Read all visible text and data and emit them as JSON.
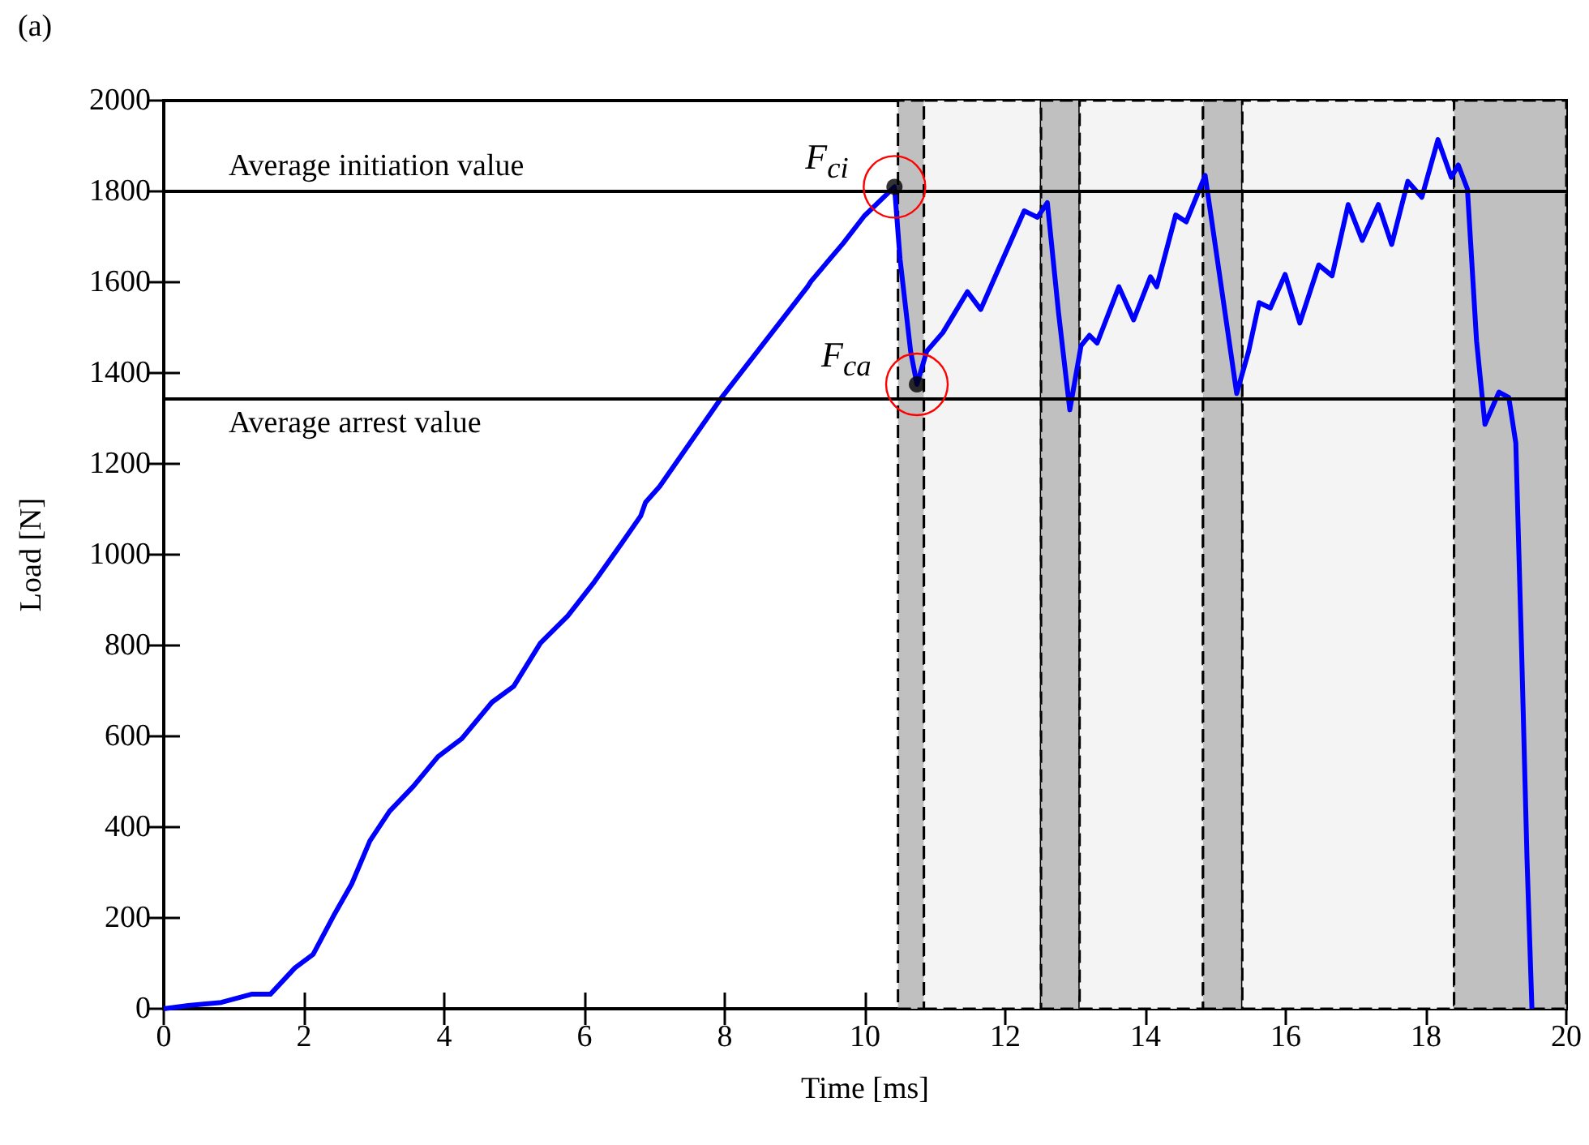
{
  "chart_data": {
    "type": "line",
    "title": "(a)",
    "xlabel": "Time [ms]",
    "ylabel": "Load [N]",
    "xlim": [
      0,
      20
    ],
    "xticks": [
      0,
      2,
      4,
      6,
      8,
      10,
      12,
      14,
      16,
      18,
      20
    ],
    "ylim": [
      0,
      2000
    ],
    "yticks": [
      0,
      200,
      400,
      600,
      800,
      1000,
      1200,
      1400,
      1600,
      1800,
      2000
    ],
    "series": [
      {
        "color": "#0000ff",
        "x": [
          0,
          0.35,
          0.82,
          1.25,
          1.52,
          1.87,
          2.13,
          2.44,
          2.68,
          2.94,
          3.22,
          3.56,
          3.91,
          4.25,
          4.68,
          4.99,
          5.37,
          5.76,
          6.14,
          6.53,
          6.8,
          6.87,
          7.07,
          7.95,
          9.18,
          9.23,
          9.69,
          9.99,
          10.42,
          10.5,
          10.65,
          10.74,
          10.88,
          11.11,
          11.46,
          11.65,
          11.88,
          12.27,
          12.46,
          12.6,
          12.76,
          12.92,
          13.08,
          13.2,
          13.31,
          13.62,
          13.83,
          14.07,
          14.16,
          14.43,
          14.58,
          14.85,
          15.08,
          15.3,
          15.47,
          15.62,
          15.78,
          15.99,
          16.2,
          16.47,
          16.66,
          16.89,
          17.09,
          17.32,
          17.51,
          17.74,
          17.94,
          18.17,
          18.36,
          18.46,
          18.59,
          18.72,
          18.84,
          19.04,
          19.18,
          19.28,
          19.36,
          19.44,
          19.51
        ],
        "values": [
          0,
          7,
          14,
          32,
          32,
          90,
          120,
          210,
          275,
          370,
          435,
          490,
          555,
          595,
          675,
          710,
          805,
          865,
          940,
          1025,
          1085,
          1115,
          1150,
          1345,
          1590,
          1602,
          1686,
          1746,
          1810,
          1650,
          1448,
          1375,
          1448,
          1489,
          1579,
          1540,
          1621,
          1757,
          1743,
          1775,
          1532,
          1319,
          1460,
          1483,
          1466,
          1590,
          1517,
          1612,
          1590,
          1748,
          1733,
          1835,
          1590,
          1355,
          1448,
          1555,
          1543,
          1617,
          1510,
          1638,
          1614,
          1771,
          1692,
          1771,
          1683,
          1822,
          1787,
          1914,
          1831,
          1858,
          1805,
          1471,
          1287,
          1358,
          1346,
          1246,
          805,
          329,
          0
        ]
      },
      {
        "type": "scatter",
        "color": "#000000",
        "x": [
          10.42,
          10.74
        ],
        "values": [
          1810,
          1375
        ]
      }
    ],
    "ref_lines": [
      {
        "axis": "y",
        "value": 1800,
        "label": "Average initiation value",
        "color": "#000000"
      },
      {
        "axis": "y",
        "value": 1345,
        "label": "Average arrest value",
        "color": "#000000"
      }
    ],
    "bands": [
      {
        "axis": "x",
        "from": 10.47,
        "to": 10.84,
        "color": "#c0c0c0"
      },
      {
        "axis": "x",
        "from": 10.84,
        "to": 12.51,
        "color": "#f4f4f4"
      },
      {
        "axis": "x",
        "from": 12.51,
        "to": 13.06,
        "color": "#c0c0c0"
      },
      {
        "axis": "x",
        "from": 13.06,
        "to": 14.82,
        "color": "#f4f4f4"
      },
      {
        "axis": "x",
        "from": 14.82,
        "to": 15.38,
        "color": "#c0c0c0"
      },
      {
        "axis": "x",
        "from": 15.38,
        "to": 18.4,
        "color": "#f4f4f4"
      },
      {
        "axis": "x",
        "from": 18.4,
        "to": 20,
        "color": "#c0c0c0"
      }
    ],
    "annotations": [
      {
        "text": "F$_{ci}$",
        "x": 10.42,
        "y": 1810
      },
      {
        "text": "F$_{ca}$",
        "x": 10.74,
        "y": 1375
      }
    ]
  }
}
